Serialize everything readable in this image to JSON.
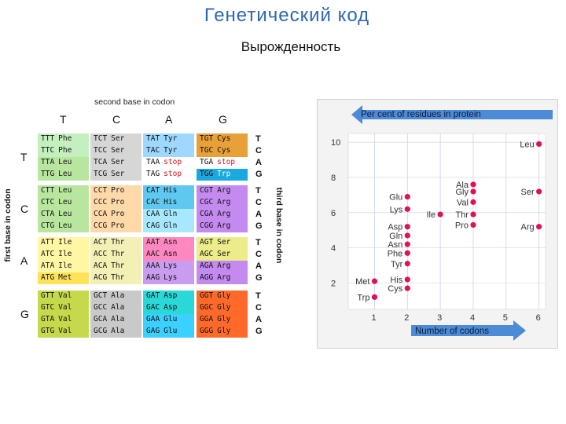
{
  "title": "Генетический код",
  "subtitle": "Вырожденность",
  "codon_table": {
    "second_base_label": "second base in codon",
    "first_base_label": "first base in codon",
    "third_base_label": "third base in codon",
    "second_bases": [
      "T",
      "C",
      "A",
      "G"
    ],
    "first_bases": [
      "T",
      "C",
      "A",
      "G"
    ],
    "third_bases": [
      "T",
      "C",
      "A",
      "G"
    ],
    "colors": {
      "Phe": "#c4f0c0",
      "Leu": "#b9e69f",
      "Ile": "#fff7a3",
      "Met": "#ffe259",
      "Val": "#c6d84c",
      "Ser": "#d6d6d6",
      "Pro": "#ffd9a8",
      "Thr": "#f2f0b4",
      "Ala": "#c9c9c9",
      "Tyr": "#9ed8ff",
      "His": "#5ec8f0",
      "Gln": "#a8e8ff",
      "Asn": "#ff88c0",
      "Lys": "#c99cf0",
      "Asp": "#2ad8d8",
      "Glu": "#3ad0ff",
      "stop": "#ffffff",
      "Cys": "#e8a038",
      "Trp": "#1aa8e0",
      "Arg": "#c48af0",
      "Gly": "#ff6a2a",
      "SerAG": "#ecec8a"
    },
    "cells": [
      [
        [
          {
            "codon": "TTT",
            "aa": "Phe",
            "c": "Phe"
          },
          {
            "codon": "TTC",
            "aa": "Phe",
            "c": "Phe"
          },
          {
            "codon": "TTA",
            "aa": "Leu",
            "c": "Leu"
          },
          {
            "codon": "TTG",
            "aa": "Leu",
            "c": "Leu"
          }
        ],
        [
          {
            "codon": "TCT",
            "aa": "Ser",
            "c": "Ser"
          },
          {
            "codon": "TCC",
            "aa": "Ser",
            "c": "Ser"
          },
          {
            "codon": "TCA",
            "aa": "Ser",
            "c": "Ser"
          },
          {
            "codon": "TCG",
            "aa": "Ser",
            "c": "Ser"
          }
        ],
        [
          {
            "codon": "TAT",
            "aa": "Tyr",
            "c": "Tyr"
          },
          {
            "codon": "TAC",
            "aa": "Tyr",
            "c": "Tyr"
          },
          {
            "codon": "TAA",
            "aa": "stop",
            "c": "stop"
          },
          {
            "codon": "TAG",
            "aa": "stop",
            "c": "stop"
          }
        ],
        [
          {
            "codon": "TGT",
            "aa": "Cys",
            "c": "Cys"
          },
          {
            "codon": "TGC",
            "aa": "Cys",
            "c": "Cys"
          },
          {
            "codon": "TGA",
            "aa": "stop",
            "c": "stop"
          },
          {
            "codon": "TGG",
            "aa": "Trp",
            "c": "Trp"
          }
        ]
      ],
      [
        [
          {
            "codon": "CTT",
            "aa": "Leu",
            "c": "Leu"
          },
          {
            "codon": "CTC",
            "aa": "Leu",
            "c": "Leu"
          },
          {
            "codon": "CTA",
            "aa": "Leu",
            "c": "Leu"
          },
          {
            "codon": "CTG",
            "aa": "Leu",
            "c": "Leu"
          }
        ],
        [
          {
            "codon": "CCT",
            "aa": "Pro",
            "c": "Pro"
          },
          {
            "codon": "CCC",
            "aa": "Pro",
            "c": "Pro"
          },
          {
            "codon": "CCA",
            "aa": "Pro",
            "c": "Pro"
          },
          {
            "codon": "CCG",
            "aa": "Pro",
            "c": "Pro"
          }
        ],
        [
          {
            "codon": "CAT",
            "aa": "His",
            "c": "His"
          },
          {
            "codon": "CAC",
            "aa": "His",
            "c": "His"
          },
          {
            "codon": "CAA",
            "aa": "Gln",
            "c": "Gln"
          },
          {
            "codon": "CAG",
            "aa": "Gln",
            "c": "Gln"
          }
        ],
        [
          {
            "codon": "CGT",
            "aa": "Arg",
            "c": "Arg"
          },
          {
            "codon": "CGC",
            "aa": "Arg",
            "c": "Arg"
          },
          {
            "codon": "CGA",
            "aa": "Arg",
            "c": "Arg"
          },
          {
            "codon": "CGG",
            "aa": "Arg",
            "c": "Arg"
          }
        ]
      ],
      [
        [
          {
            "codon": "ATT",
            "aa": "Ile",
            "c": "Ile"
          },
          {
            "codon": "ATC",
            "aa": "Ile",
            "c": "Ile"
          },
          {
            "codon": "ATA",
            "aa": "Ile",
            "c": "Ile"
          },
          {
            "codon": "ATG",
            "aa": "Met",
            "c": "Met"
          }
        ],
        [
          {
            "codon": "ACT",
            "aa": "Thr",
            "c": "Thr"
          },
          {
            "codon": "ACC",
            "aa": "Thr",
            "c": "Thr"
          },
          {
            "codon": "ACA",
            "aa": "Thr",
            "c": "Thr"
          },
          {
            "codon": "ACG",
            "aa": "Thr",
            "c": "Thr"
          }
        ],
        [
          {
            "codon": "AAT",
            "aa": "Asn",
            "c": "Asn"
          },
          {
            "codon": "AAC",
            "aa": "Asn",
            "c": "Asn"
          },
          {
            "codon": "AAA",
            "aa": "Lys",
            "c": "Lys"
          },
          {
            "codon": "AAG",
            "aa": "Lys",
            "c": "Lys"
          }
        ],
        [
          {
            "codon": "AGT",
            "aa": "Ser",
            "c": "SerAG"
          },
          {
            "codon": "AGC",
            "aa": "Ser",
            "c": "SerAG"
          },
          {
            "codon": "AGA",
            "aa": "Arg",
            "c": "Arg"
          },
          {
            "codon": "AGG",
            "aa": "Arg",
            "c": "Arg"
          }
        ]
      ],
      [
        [
          {
            "codon": "GTT",
            "aa": "Val",
            "c": "Val"
          },
          {
            "codon": "GTC",
            "aa": "Val",
            "c": "Val"
          },
          {
            "codon": "GTA",
            "aa": "Val",
            "c": "Val"
          },
          {
            "codon": "GTG",
            "aa": "Val",
            "c": "Val"
          }
        ],
        [
          {
            "codon": "GCT",
            "aa": "Ala",
            "c": "Ala"
          },
          {
            "codon": "GCC",
            "aa": "Ala",
            "c": "Ala"
          },
          {
            "codon": "GCA",
            "aa": "Ala",
            "c": "Ala"
          },
          {
            "codon": "GCG",
            "aa": "Ala",
            "c": "Ala"
          }
        ],
        [
          {
            "codon": "GAT",
            "aa": "Asp",
            "c": "Asp"
          },
          {
            "codon": "GAC",
            "aa": "Asp",
            "c": "Asp"
          },
          {
            "codon": "GAA",
            "aa": "Glu",
            "c": "Glu"
          },
          {
            "codon": "GAG",
            "aa": "Glu",
            "c": "Glu"
          }
        ],
        [
          {
            "codon": "GGT",
            "aa": "Gly",
            "c": "Gly"
          },
          {
            "codon": "GGC",
            "aa": "Gly",
            "c": "Gly"
          },
          {
            "codon": "GGA",
            "aa": "Gly",
            "c": "Gly"
          },
          {
            "codon": "GGG",
            "aa": "Gly",
            "c": "Gly"
          }
        ]
      ]
    ]
  },
  "chart_data": {
    "type": "scatter",
    "title": "Per cent of residues in protein",
    "xlabel": "Number of codons",
    "ylabel": "Per cent of residues in protein",
    "xlim": [
      0.2,
      6.2
    ],
    "ylim": [
      0.5,
      10.5
    ],
    "x_ticks": [
      1,
      2,
      3,
      4,
      5,
      6
    ],
    "y_ticks": [
      2,
      4,
      6,
      8,
      10
    ],
    "grid": true,
    "accent_color": "#e0105a",
    "arrow_color": "#3b7fd4",
    "points": [
      {
        "label": "Leu",
        "x": 6,
        "y": 9.9
      },
      {
        "label": "Ser",
        "x": 6,
        "y": 7.2
      },
      {
        "label": "Arg",
        "x": 6,
        "y": 5.2
      },
      {
        "label": "Ala",
        "x": 4,
        "y": 7.6
      },
      {
        "label": "Gly",
        "x": 4,
        "y": 7.2
      },
      {
        "label": "Val",
        "x": 4,
        "y": 6.6
      },
      {
        "label": "Thr",
        "x": 4,
        "y": 5.9
      },
      {
        "label": "Pro",
        "x": 4,
        "y": 5.3
      },
      {
        "label": "Ile",
        "x": 3,
        "y": 5.9
      },
      {
        "label": "Glu",
        "x": 2,
        "y": 6.9
      },
      {
        "label": "Lys",
        "x": 2,
        "y": 6.2
      },
      {
        "label": "Asp",
        "x": 2,
        "y": 5.2
      },
      {
        "label": "Gln",
        "x": 2,
        "y": 4.7
      },
      {
        "label": "Asn",
        "x": 2,
        "y": 4.2
      },
      {
        "label": "Phe",
        "x": 2,
        "y": 3.7
      },
      {
        "label": "Tyr",
        "x": 2,
        "y": 3.1
      },
      {
        "label": "His",
        "x": 2,
        "y": 2.2
      },
      {
        "label": "Cys",
        "x": 2,
        "y": 1.7
      },
      {
        "label": "Met",
        "x": 1,
        "y": 2.1
      },
      {
        "label": "Trp",
        "x": 1,
        "y": 1.2
      }
    ]
  }
}
